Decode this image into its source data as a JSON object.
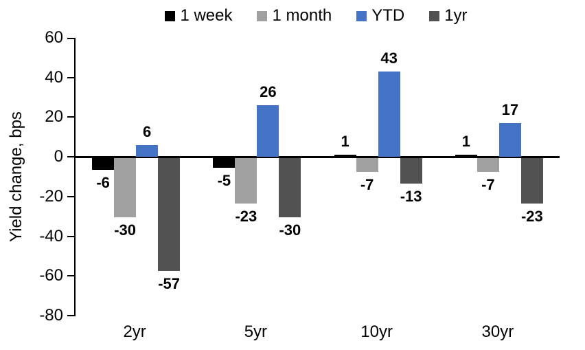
{
  "chart_data": {
    "type": "bar",
    "title": "",
    "xlabel": "",
    "ylabel": "Yield change, bps",
    "categories": [
      "2yr",
      "5yr",
      "10yr",
      "30yr"
    ],
    "series": [
      {
        "name": "1 week",
        "color": "#000000",
        "values": [
          -6,
          -5,
          1,
          1
        ]
      },
      {
        "name": "1 month",
        "color": "#A0A0A0",
        "values": [
          -30,
          -23,
          -7,
          -7
        ]
      },
      {
        "name": "YTD",
        "color": "#4472C4",
        "values": [
          6,
          26,
          43,
          17
        ]
      },
      {
        "name": "1yr",
        "color": "#525252",
        "values": [
          -57,
          -30,
          -13,
          -23
        ]
      }
    ],
    "ylim": [
      -80,
      60
    ],
    "yticks": [
      60,
      40,
      20,
      0,
      -20,
      -40,
      -60,
      -80
    ],
    "ytick_step": 20,
    "grid": false,
    "legend_position": "top",
    "data_labels": true,
    "axis_color": "#000000",
    "background_color": "#FFFFFF"
  }
}
